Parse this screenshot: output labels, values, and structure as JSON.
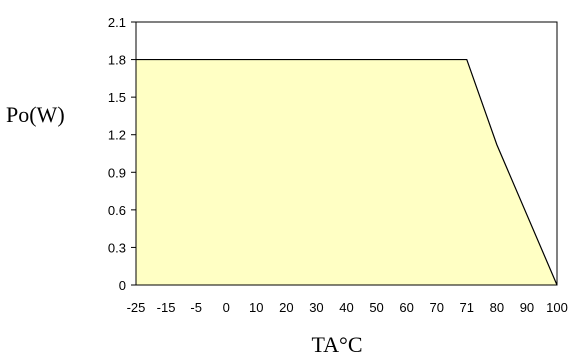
{
  "chart_data": {
    "type": "area",
    "title": "",
    "xlabel": "TA°C",
    "ylabel": "Po(W)",
    "x_tick_labels": [
      "-25",
      "-15",
      "-5",
      "0",
      "10",
      "20",
      "30",
      "40",
      "50",
      "60",
      "70",
      "71",
      "80",
      "90",
      "100"
    ],
    "y_tick_labels": [
      "0",
      "0.3",
      "0.6",
      "0.9",
      "1.2",
      "1.5",
      "1.8",
      "2.1"
    ],
    "y_ticks": [
      0,
      0.3,
      0.6,
      0.9,
      1.2,
      1.5,
      1.8,
      2.1
    ],
    "ylim": [
      0,
      2.1
    ],
    "grid": false,
    "series": [
      {
        "x": [
          -25,
          71,
          80,
          100
        ],
        "y": [
          1.8,
          1.8,
          1.12,
          0
        ]
      }
    ],
    "colors": {
      "fill": "#ffffc4",
      "line": "#000000",
      "frame": "#000000"
    }
  }
}
